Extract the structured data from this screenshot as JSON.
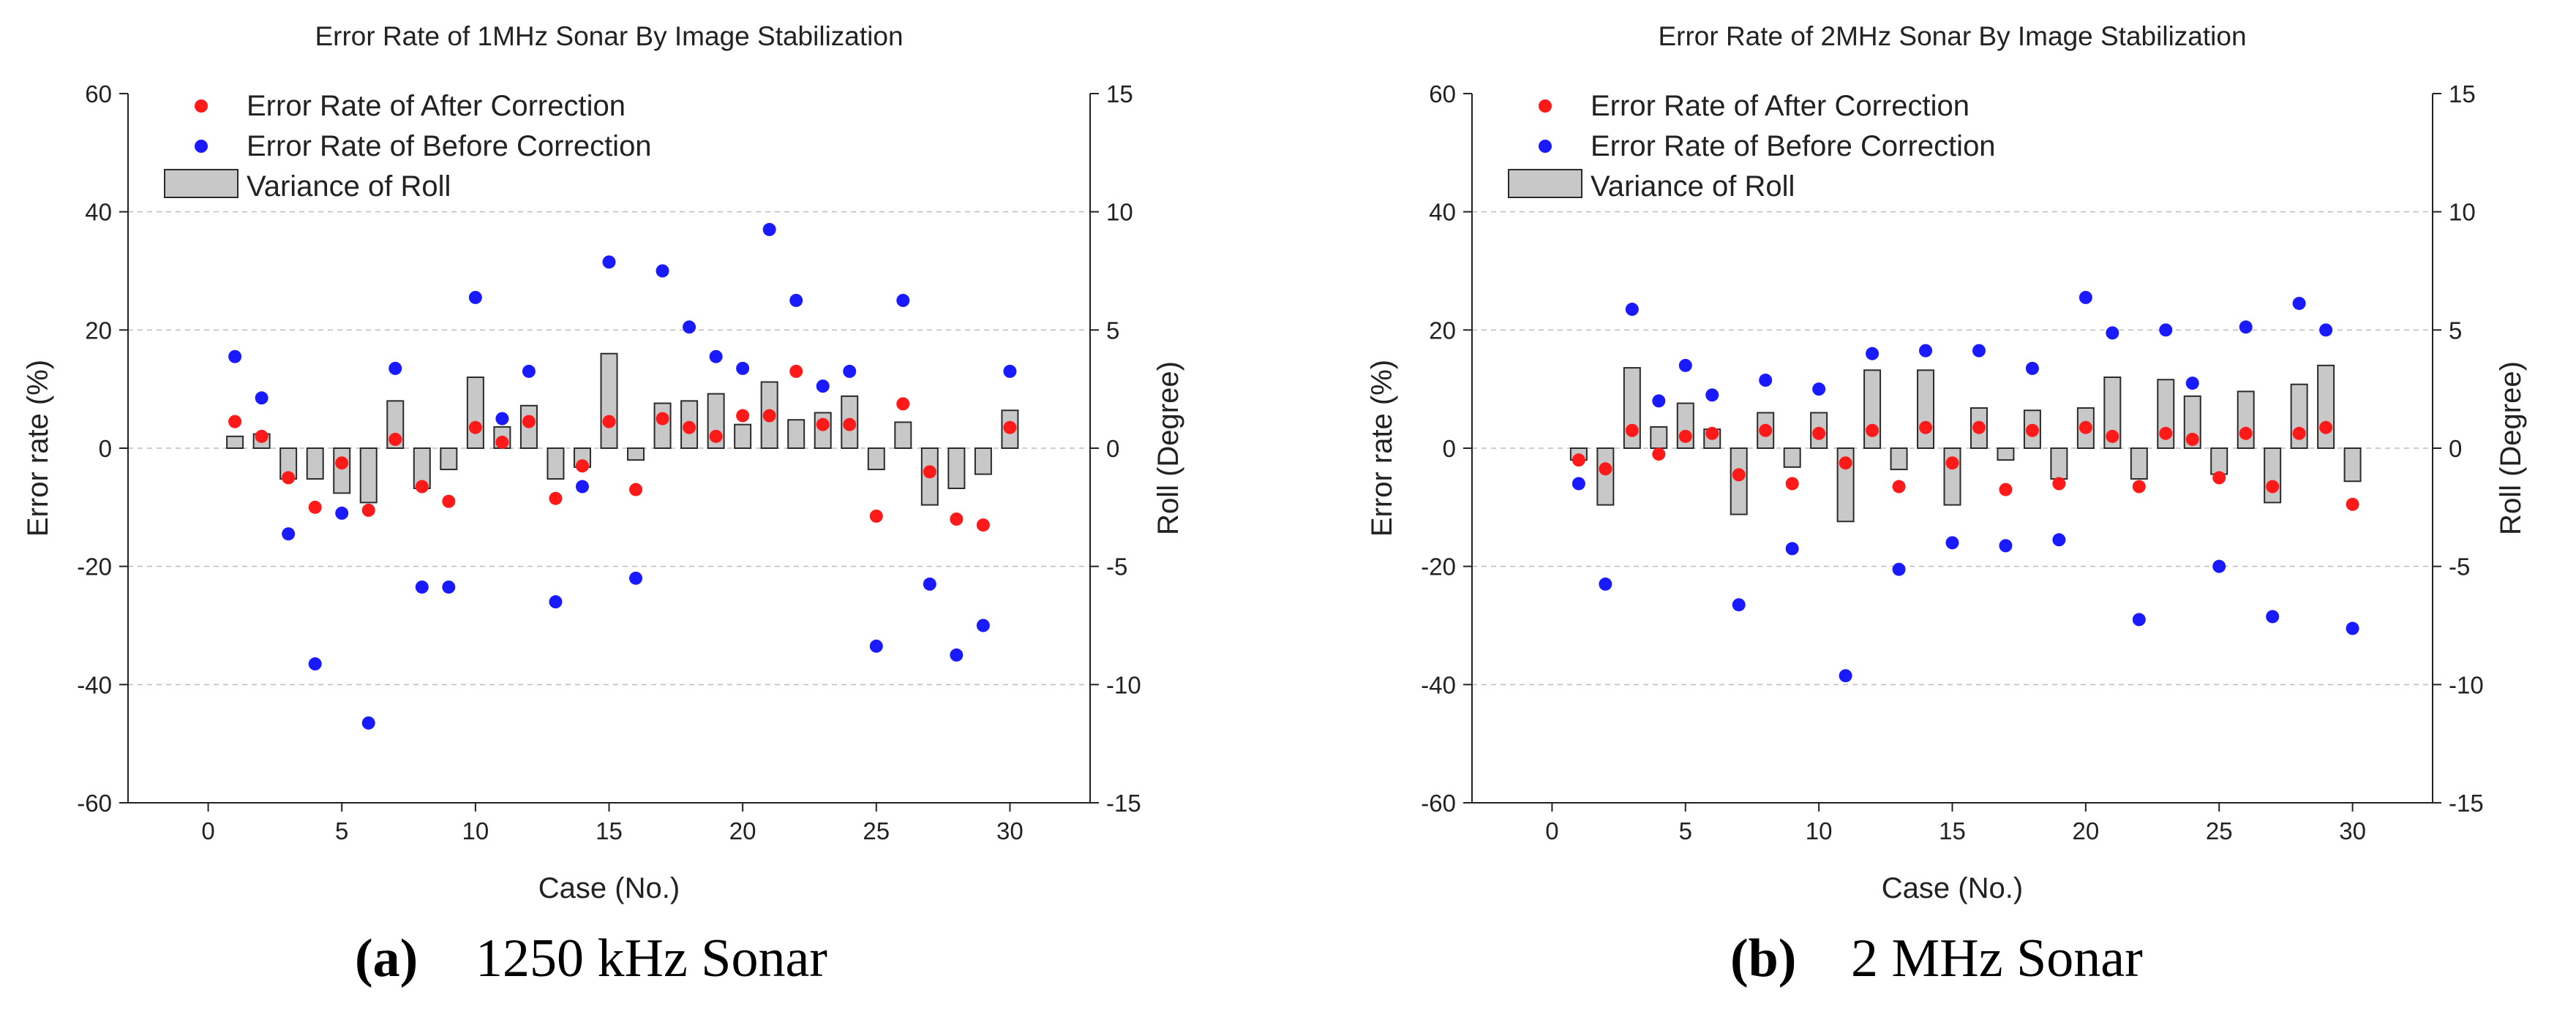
{
  "figure": {
    "panels": [
      {
        "caption_label": "(a)",
        "caption_text": "1250 kHz Sonar"
      },
      {
        "caption_label": "(b)",
        "caption_text": "2 MHz Sonar"
      }
    ]
  },
  "chart_data": [
    {
      "type": "scatter",
      "title": "Error Rate of 1MHz Sonar By Image Stabilization",
      "xlabel": "Case (No.)",
      "ylabel": "Error rate (%)",
      "y2label": "Roll (Degree)",
      "xlim": [
        -3,
        33
      ],
      "ylim": [
        -60,
        60
      ],
      "y2lim": [
        -15,
        15
      ],
      "xticks": [
        0,
        5,
        10,
        15,
        20,
        25,
        30
      ],
      "yticks": [
        -60,
        -40,
        -20,
        0,
        20,
        40,
        60
      ],
      "y2ticks": [
        -15,
        -10,
        -5,
        0,
        5,
        10,
        15
      ],
      "grid": "horizontal dashed",
      "legend_position": "top-left",
      "x": [
        1,
        2,
        3,
        4,
        5,
        6,
        7,
        8,
        9,
        10,
        11,
        12,
        13,
        14,
        15,
        16,
        17,
        18,
        19,
        20,
        21,
        22,
        23,
        24,
        25,
        26,
        27,
        28,
        29,
        30
      ],
      "series": [
        {
          "name": "Error Rate of After Correction",
          "kind": "scatter",
          "color": "#ff1a1a",
          "axis": "left",
          "values": [
            4.5,
            2,
            -5,
            -10,
            -2.5,
            -10.5,
            1.5,
            -6.5,
            -9,
            3.5,
            1,
            4.5,
            -8.5,
            -3,
            4.5,
            -7,
            5,
            3.5,
            2,
            5.5,
            5.5,
            13,
            4,
            4,
            -11.5,
            7.5,
            -4,
            -12,
            -13,
            3.5
          ]
        },
        {
          "name": "Error Rate of Before Correction",
          "kind": "scatter",
          "color": "#1a1aff",
          "axis": "left",
          "values": [
            15.5,
            8.5,
            -14.5,
            -36.5,
            -11,
            -46.5,
            13.5,
            -23.5,
            -23.5,
            25.5,
            5,
            13,
            -26,
            -6.5,
            31.5,
            -22,
            30,
            20.5,
            15.5,
            13.5,
            37,
            25,
            10.5,
            13,
            -33.5,
            25,
            -23,
            -35,
            -30,
            13
          ]
        },
        {
          "name": "Variance of Roll",
          "kind": "bar",
          "color": "#c8c8c8",
          "axis": "right",
          "values": [
            0.5,
            0.6,
            -1.3,
            -1.3,
            -1.9,
            -2.3,
            2,
            -1.7,
            -0.9,
            3,
            0.9,
            1.8,
            -1.3,
            -0.8,
            4,
            -0.5,
            1.9,
            2,
            2.3,
            1,
            2.8,
            1.2,
            1.5,
            2.2,
            -0.9,
            1.1,
            -2.4,
            -1.7,
            -1.1,
            1.6
          ]
        }
      ]
    },
    {
      "type": "scatter",
      "title": "Error Rate of 2MHz Sonar By Image Stabilization",
      "xlabel": "Case (No.)",
      "ylabel": "Error rate (%)",
      "y2label": "Roll (Degree)",
      "xlim": [
        -3,
        33
      ],
      "ylim": [
        -60,
        60
      ],
      "y2lim": [
        -15,
        15
      ],
      "xticks": [
        0,
        5,
        10,
        15,
        20,
        25,
        30
      ],
      "yticks": [
        -60,
        -40,
        -20,
        0,
        20,
        40,
        60
      ],
      "y2ticks": [
        -15,
        -10,
        -5,
        0,
        5,
        10,
        15
      ],
      "grid": "horizontal dashed",
      "legend_position": "top-left",
      "x": [
        1,
        2,
        3,
        4,
        5,
        6,
        7,
        8,
        9,
        10,
        11,
        12,
        13,
        14,
        15,
        16,
        17,
        18,
        19,
        20,
        21,
        22,
        23,
        24,
        25,
        26,
        27,
        28,
        29,
        30
      ],
      "series": [
        {
          "name": "Error Rate of After Correction",
          "kind": "scatter",
          "color": "#ff1a1a",
          "axis": "left",
          "values": [
            -2,
            -3.5,
            3,
            -1,
            2,
            2.5,
            -4.5,
            3,
            -6,
            2.5,
            -2.5,
            3,
            -6.5,
            3.5,
            -2.5,
            3.5,
            -7,
            3,
            -6,
            3.5,
            2,
            -6.5,
            2.5,
            1.5,
            -5,
            2.5,
            -6.5,
            2.5,
            3.5,
            -9.5
          ]
        },
        {
          "name": "Error Rate of Before Correction",
          "kind": "scatter",
          "color": "#1a1aff",
          "axis": "left",
          "values": [
            -6,
            -23,
            23.5,
            8,
            14,
            9,
            -26.5,
            11.5,
            -17,
            10,
            -38.5,
            16,
            -20.5,
            16.5,
            -16,
            16.5,
            -16.5,
            13.5,
            -15.5,
            25.5,
            19.5,
            -29,
            20,
            11,
            -20,
            20.5,
            -28.5,
            24.5,
            20,
            -30.5
          ]
        },
        {
          "name": "Variance of Roll",
          "kind": "bar",
          "color": "#c8c8c8",
          "axis": "right",
          "values": [
            -0.5,
            -2.4,
            3.4,
            0.9,
            1.9,
            0.8,
            -2.8,
            1.5,
            -0.8,
            1.5,
            -3.1,
            3.3,
            -0.9,
            3.3,
            -2.4,
            1.7,
            -0.5,
            1.6,
            -1.3,
            1.7,
            3,
            -1.3,
            2.9,
            2.2,
            -1.1,
            2.4,
            -2.3,
            2.7,
            3.5,
            -1.4
          ]
        }
      ]
    }
  ]
}
